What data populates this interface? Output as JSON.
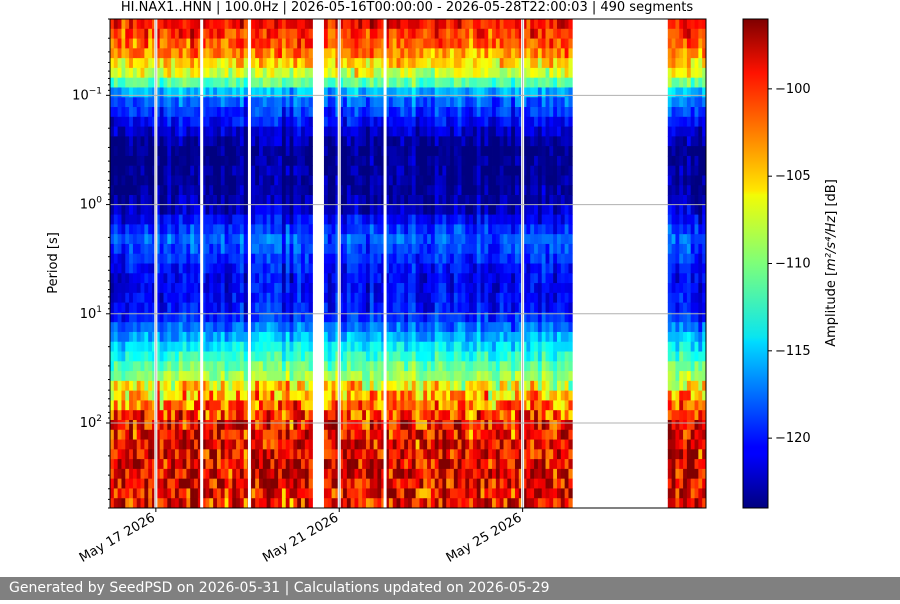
{
  "footer": {
    "text": "Generated by SeedPSD on 2026-05-31 | Calculations updated on 2026-05-29"
  },
  "chart_data": {
    "type": "heatmap",
    "title": "HI.NAX1..HNN | 100.0Hz | 2026-05-16T00:00:00 - 2026-05-28T22:00:03 | 490 segments",
    "ylabel": "Period [s]",
    "y_scale": "log",
    "y_direction": "inverted",
    "ylim": [
      0.02,
      600
    ],
    "y_ticks": [
      {
        "value": 0.1,
        "base": "10",
        "exp": "−1"
      },
      {
        "value": 1,
        "base": "10",
        "exp": "0"
      },
      {
        "value": 10,
        "base": "10",
        "exp": "1"
      },
      {
        "value": 100,
        "base": "10",
        "exp": "2"
      }
    ],
    "xlim": [
      "2026-05-16",
      "2026-05-29"
    ],
    "x_ticks": [
      {
        "date": "2026-05-17",
        "label": "May 17 2026"
      },
      {
        "date": "2026-05-21",
        "label": "May 21 2026"
      },
      {
        "date": "2026-05-25",
        "label": "May 25 2026"
      }
    ],
    "grid": true,
    "colormap": "jet",
    "colorbar": {
      "label_prefix": "Amplitude [",
      "label_unit": "m²/s⁴/Hz",
      "label_suffix": "] [dB]",
      "range": [
        -124,
        -96
      ],
      "ticks": [
        -100,
        -105,
        -110,
        -115,
        -120
      ]
    },
    "profile": {
      "periods": [
        0.02,
        0.04,
        0.07,
        0.1,
        0.3,
        1,
        2,
        5,
        10,
        20,
        50,
        100,
        300,
        600
      ],
      "amplitudes_db": [
        -99,
        -103,
        -109,
        -117,
        -124,
        -123,
        -118,
        -121,
        -120,
        -114,
        -107,
        -101,
        -100,
        -101
      ]
    },
    "gaps": [
      [
        "2026-05-20T09:00:00",
        "2026-05-20T16:00:00"
      ],
      [
        "2026-05-26T02:00:00",
        "2026-05-28T04:00:00"
      ]
    ],
    "dropouts": [
      "2026-05-17T00:00:00",
      "2026-05-18T00:00:00",
      "2026-05-19T01:00:00",
      "2026-05-21T00:00:00",
      "2026-05-22T00:00:00",
      "2026-05-25T00:00:00"
    ]
  }
}
